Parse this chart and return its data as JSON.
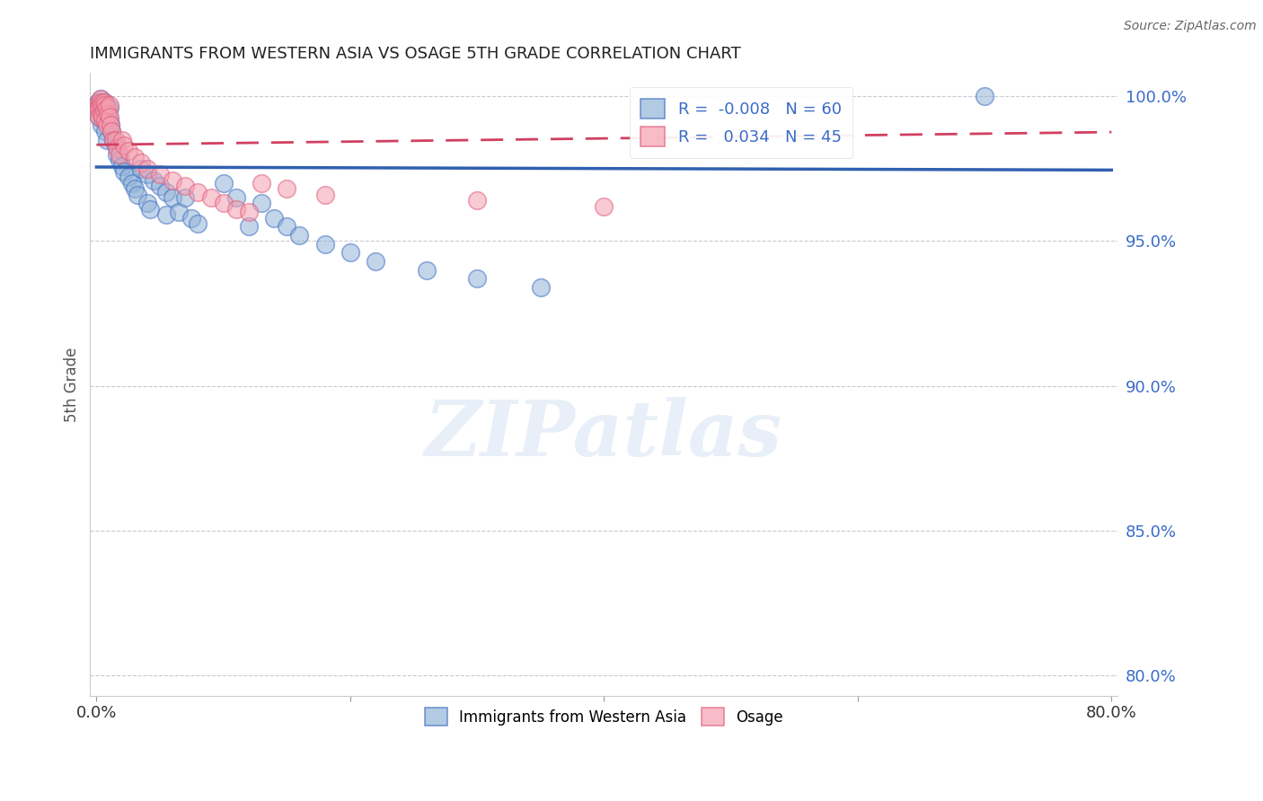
{
  "title": "IMMIGRANTS FROM WESTERN ASIA VS OSAGE 5TH GRADE CORRELATION CHART",
  "source": "Source: ZipAtlas.com",
  "ylabel": "5th Grade",
  "xlim": [
    -0.005,
    0.805
  ],
  "ylim": [
    0.793,
    1.008
  ],
  "yticks": [
    0.8,
    0.85,
    0.9,
    0.95,
    1.0
  ],
  "ytick_labels": [
    "80.0%",
    "85.0%",
    "90.0%",
    "95.0%",
    "100.0%"
  ],
  "xticks": [
    0.0,
    0.2,
    0.4,
    0.6,
    0.8
  ],
  "xtick_labels": [
    "0.0%",
    "",
    "",
    "",
    "80.0%"
  ],
  "blue_R": -0.008,
  "blue_N": 60,
  "pink_R": 0.034,
  "pink_N": 45,
  "blue_fill": "#92B4D7",
  "pink_fill": "#F4A0B0",
  "blue_edge": "#4472C4",
  "pink_edge": "#E06080",
  "blue_line": "#3060B0",
  "pink_line": "#D04060",
  "grid_color": "#BBBBCC",
  "axis_label_color": "#3B6BC8",
  "legend_label_blue": "Immigrants from Western Asia",
  "legend_label_pink": "Osage",
  "blue_x": [
    0.001,
    0.001,
    0.002,
    0.002,
    0.003,
    0.003,
    0.003,
    0.004,
    0.004,
    0.005,
    0.005,
    0.005,
    0.006,
    0.006,
    0.007,
    0.007,
    0.008,
    0.008,
    0.009,
    0.01,
    0.01,
    0.011,
    0.012,
    0.013,
    0.015,
    0.016,
    0.018,
    0.02,
    0.022,
    0.025,
    0.028,
    0.03,
    0.032,
    0.035,
    0.04,
    0.04,
    0.042,
    0.045,
    0.05,
    0.055,
    0.055,
    0.06,
    0.065,
    0.07,
    0.075,
    0.08,
    0.1,
    0.11,
    0.12,
    0.13,
    0.14,
    0.15,
    0.16,
    0.18,
    0.2,
    0.22,
    0.26,
    0.3,
    0.35,
    0.7
  ],
  "blue_y": [
    0.998,
    0.996,
    0.997,
    0.993,
    0.999,
    0.998,
    0.995,
    0.997,
    0.99,
    0.998,
    0.996,
    0.992,
    0.997,
    0.994,
    0.998,
    0.988,
    0.996,
    0.985,
    0.994,
    0.996,
    0.992,
    0.99,
    0.988,
    0.985,
    0.983,
    0.98,
    0.978,
    0.976,
    0.974,
    0.972,
    0.97,
    0.968,
    0.966,
    0.975,
    0.973,
    0.963,
    0.961,
    0.971,
    0.969,
    0.967,
    0.959,
    0.965,
    0.96,
    0.965,
    0.958,
    0.956,
    0.97,
    0.965,
    0.955,
    0.963,
    0.958,
    0.955,
    0.952,
    0.949,
    0.946,
    0.943,
    0.94,
    0.937,
    0.934,
    1.0
  ],
  "pink_x": [
    0.001,
    0.001,
    0.002,
    0.002,
    0.002,
    0.003,
    0.003,
    0.004,
    0.004,
    0.005,
    0.005,
    0.006,
    0.006,
    0.007,
    0.007,
    0.008,
    0.008,
    0.009,
    0.01,
    0.01,
    0.011,
    0.012,
    0.013,
    0.015,
    0.016,
    0.018,
    0.02,
    0.022,
    0.025,
    0.03,
    0.035,
    0.04,
    0.05,
    0.06,
    0.07,
    0.08,
    0.09,
    0.1,
    0.11,
    0.12,
    0.13,
    0.15,
    0.18,
    0.3,
    0.4
  ],
  "pink_y": [
    0.997,
    0.995,
    0.998,
    0.996,
    0.993,
    0.999,
    0.997,
    0.998,
    0.994,
    0.997,
    0.993,
    0.998,
    0.995,
    0.997,
    0.992,
    0.996,
    0.99,
    0.994,
    0.997,
    0.993,
    0.99,
    0.988,
    0.985,
    0.985,
    0.982,
    0.98,
    0.985,
    0.983,
    0.981,
    0.979,
    0.977,
    0.975,
    0.973,
    0.971,
    0.969,
    0.967,
    0.965,
    0.963,
    0.961,
    0.96,
    0.97,
    0.968,
    0.966,
    0.964,
    0.962
  ]
}
